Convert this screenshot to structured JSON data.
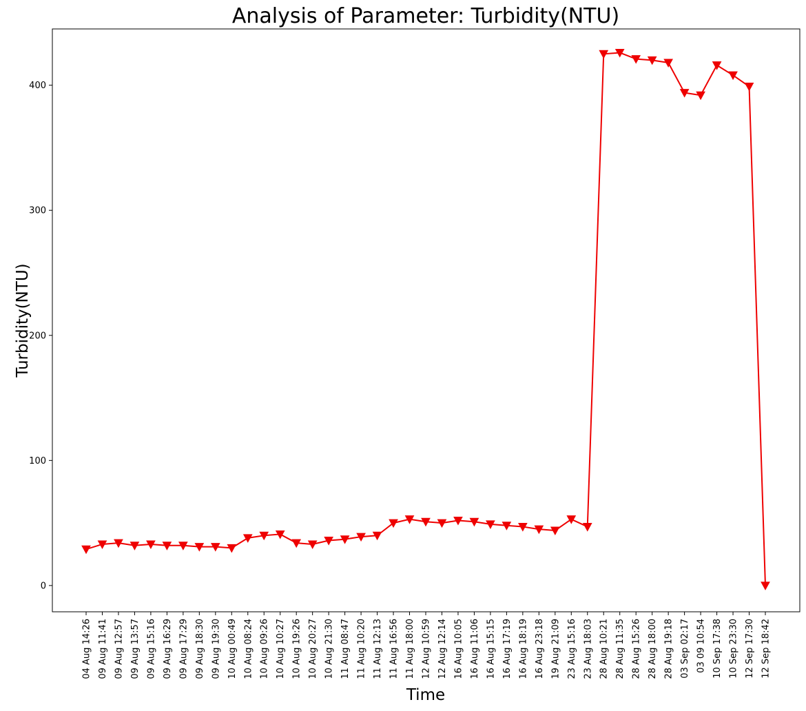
{
  "chart_data": {
    "type": "line",
    "title": "Analysis of Parameter: Turbidity(NTU)",
    "xlabel": "Time",
    "ylabel": "Turbidity(NTU)",
    "ylim": [
      -21,
      445
    ],
    "yticks": [
      0,
      100,
      200,
      300,
      400
    ],
    "grid": false,
    "legend": "none",
    "categories": [
      "04 Aug 14:26",
      "09 Aug 11:41",
      "09 Aug 12:57",
      "09 Aug 13:57",
      "09 Aug 15:16",
      "09 Aug 16:29",
      "09 Aug 17:29",
      "09 Aug 18:30",
      "09 Aug 19:30",
      "10 Aug 00:49",
      "10 Aug 08:24",
      "10 Aug 09:26",
      "10 Aug 10:27",
      "10 Aug 19:26",
      "10 Aug 20:27",
      "10 Aug 21:30",
      "11 Aug 08:47",
      "11 Aug 10:20",
      "11 Aug 12:13",
      "11 Aug 16:56",
      "11 Aug 18:00",
      "12 Aug 10:59",
      "12 Aug 12:14",
      "16 Aug 10:05",
      "16 Aug 11:06",
      "16 Aug 15:15",
      "16 Aug 17:19",
      "16 Aug 18:19",
      "16 Aug 23:18",
      "19 Aug 21:09",
      "23 Aug 15:16",
      "23 Aug 18:03",
      "28 Aug 10:21",
      "28 Aug 11:35",
      "28 Aug 15:26",
      "28 Aug 18:00",
      "28 Aug 19:18",
      "03 Sep 02:17",
      "03 09 10:54",
      "10 Sep 17:38",
      "10 Sep 23:30",
      "12 Sep 17:30",
      "12 Sep 18:42"
    ],
    "series": [
      {
        "color": "#ee0000",
        "marker": "triangle-down",
        "values": [
          29,
          33,
          34,
          32,
          33,
          32,
          32,
          31,
          31,
          30,
          38,
          40,
          41,
          34,
          33,
          36,
          37,
          39,
          40,
          50,
          53,
          51,
          50,
          52,
          51,
          49,
          48,
          47,
          45,
          44,
          53,
          47,
          425,
          426,
          421,
          420,
          418,
          394,
          392,
          416,
          408,
          399,
          0
        ]
      }
    ]
  }
}
